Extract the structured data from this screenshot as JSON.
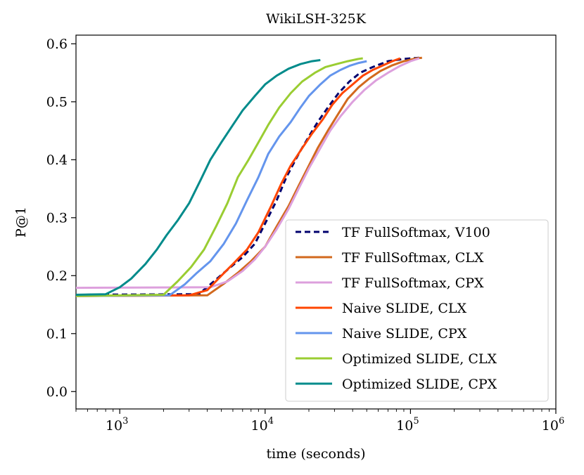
{
  "chart_data": {
    "type": "line",
    "title": "WikiLSH-325K",
    "xlabel": "time (seconds)",
    "ylabel": "P@1",
    "xscale": "log",
    "xlim": [
      500,
      1000000
    ],
    "ylim": [
      -0.03,
      0.615
    ],
    "x_ticks": [
      {
        "value": 1000,
        "base": "10",
        "exp": "3"
      },
      {
        "value": 10000,
        "base": "10",
        "exp": "4"
      },
      {
        "value": 100000,
        "base": "10",
        "exp": "5"
      },
      {
        "value": 1000000,
        "base": "10",
        "exp": "6"
      }
    ],
    "y_ticks": [
      {
        "value": 0.0,
        "label": "0.0"
      },
      {
        "value": 0.1,
        "label": "0.1"
      },
      {
        "value": 0.2,
        "label": "0.2"
      },
      {
        "value": 0.3,
        "label": "0.3"
      },
      {
        "value": 0.4,
        "label": "0.4"
      },
      {
        "value": 0.5,
        "label": "0.5"
      },
      {
        "value": 0.6,
        "label": "0.6"
      }
    ],
    "legend_position": "bottom-right",
    "series": [
      {
        "name": "TF FullSoftmax, V100",
        "color": "#00006e",
        "dash": "8,5",
        "x": [
          500,
          3500,
          4200,
          5500,
          7000,
          8500,
          10000,
          12000,
          14000,
          17000,
          20000,
          23000,
          27000,
          32000,
          38000,
          45000,
          55000,
          70000,
          90000,
          115000
        ],
        "y": [
          0.167,
          0.168,
          0.185,
          0.21,
          0.232,
          0.255,
          0.29,
          0.33,
          0.37,
          0.41,
          0.44,
          0.465,
          0.49,
          0.515,
          0.535,
          0.55,
          0.56,
          0.57,
          0.574,
          0.576
        ]
      },
      {
        "name": "TF FullSoftmax, CLX",
        "color": "#d2691e",
        "dash": "",
        "x": [
          500,
          4000,
          5200,
          6500,
          8000,
          10000,
          12000,
          14500,
          17000,
          20000,
          23000,
          27000,
          32000,
          37000,
          44000,
          52000,
          62000,
          75000,
          90000,
          110000,
          120000
        ],
        "y": [
          0.165,
          0.166,
          0.186,
          0.205,
          0.225,
          0.25,
          0.285,
          0.32,
          0.355,
          0.39,
          0.42,
          0.45,
          0.48,
          0.505,
          0.525,
          0.54,
          0.553,
          0.563,
          0.57,
          0.575,
          0.576
        ]
      },
      {
        "name": "TF FullSoftmax, CPX",
        "color": "#dda0dd",
        "dash": "",
        "x": [
          500,
          4200,
          5500,
          7000,
          8500,
          10000,
          12000,
          14500,
          17000,
          20000,
          24000,
          28000,
          33000,
          40000,
          48000,
          58000,
          70000,
          85000,
          100000,
          115000
        ],
        "y": [
          0.179,
          0.18,
          0.19,
          0.208,
          0.228,
          0.25,
          0.28,
          0.315,
          0.35,
          0.385,
          0.42,
          0.45,
          0.475,
          0.5,
          0.52,
          0.537,
          0.55,
          0.562,
          0.57,
          0.575
        ]
      },
      {
        "name": "Naive SLIDE, CLX",
        "color": "#ff4500",
        "dash": "",
        "x": [
          500,
          3000,
          4000,
          5000,
          6000,
          7500,
          9000,
          11000,
          13000,
          15000,
          18000,
          21000,
          25000,
          29000,
          34000,
          40000,
          47000,
          55000,
          65000,
          75000,
          85000
        ],
        "y": [
          0.165,
          0.166,
          0.175,
          0.2,
          0.22,
          0.245,
          0.275,
          0.32,
          0.36,
          0.39,
          0.42,
          0.445,
          0.47,
          0.495,
          0.515,
          0.53,
          0.545,
          0.555,
          0.563,
          0.57,
          0.575
        ]
      },
      {
        "name": "Naive SLIDE, CPX",
        "color": "#6495ed",
        "dash": "",
        "x": [
          500,
          2200,
          2800,
          3400,
          4200,
          5200,
          6300,
          7500,
          9000,
          10500,
          12500,
          15000,
          17500,
          20000,
          24000,
          28000,
          33000,
          38000,
          44000,
          50000
        ],
        "y": [
          0.165,
          0.166,
          0.185,
          0.205,
          0.225,
          0.255,
          0.29,
          0.33,
          0.37,
          0.41,
          0.44,
          0.465,
          0.49,
          0.51,
          0.53,
          0.545,
          0.555,
          0.562,
          0.567,
          0.57
        ]
      },
      {
        "name": "Optimized SLIDE, CLX",
        "color": "#9acd32",
        "dash": "",
        "x": [
          500,
          2000,
          2500,
          3100,
          3800,
          4600,
          5500,
          6500,
          7700,
          9000,
          10500,
          12500,
          15000,
          18000,
          22000,
          26000,
          31000,
          37000,
          44000,
          47000
        ],
        "y": [
          0.165,
          0.167,
          0.19,
          0.215,
          0.245,
          0.285,
          0.325,
          0.37,
          0.4,
          0.43,
          0.46,
          0.49,
          0.515,
          0.535,
          0.55,
          0.56,
          0.565,
          0.57,
          0.574,
          0.575
        ]
      },
      {
        "name": "Optimized SLIDE, CPX",
        "color": "#008b8b",
        "dash": "",
        "x": [
          500,
          800,
          1000,
          1200,
          1500,
          1800,
          2100,
          2500,
          3000,
          3600,
          4200,
          5000,
          6000,
          7000,
          8500,
          10000,
          12000,
          14500,
          17500,
          21000,
          24000
        ],
        "y": [
          0.167,
          0.168,
          0.18,
          0.195,
          0.22,
          0.245,
          0.27,
          0.295,
          0.325,
          0.365,
          0.4,
          0.43,
          0.46,
          0.485,
          0.51,
          0.53,
          0.545,
          0.557,
          0.565,
          0.57,
          0.572
        ]
      }
    ]
  }
}
